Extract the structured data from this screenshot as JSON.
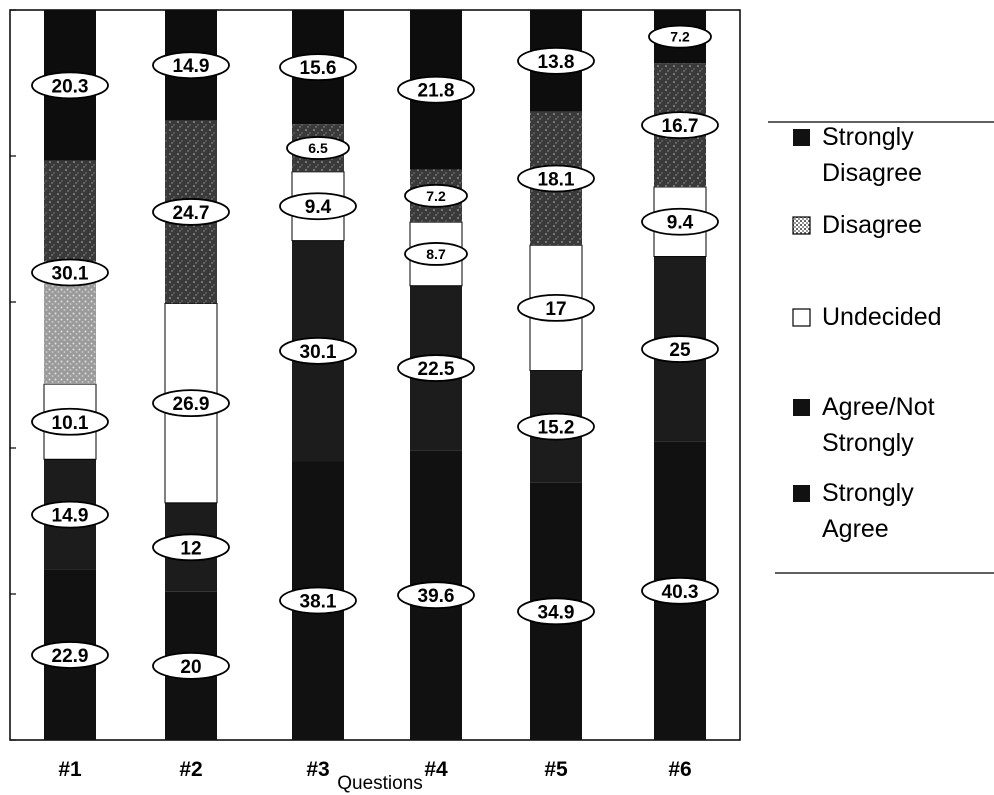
{
  "chart_data": {
    "type": "bar",
    "stacked": true,
    "percent": true,
    "xlabel": "Questions",
    "ylabel": "",
    "title": "",
    "ylim": [
      0,
      100
    ],
    "categories": [
      "#1",
      "#2",
      "#3",
      "#4",
      "#5",
      "#6"
    ],
    "series": [
      {
        "name": "Strongly Agree",
        "color": "#111111",
        "pattern": "solid",
        "values": [
          22.9,
          20,
          38.1,
          39.6,
          34.9,
          40.3
        ],
        "labels": [
          "22.9",
          "20",
          "38.1",
          "39.6",
          "34.9",
          "40.3"
        ]
      },
      {
        "name": "Agree/Not Strongly",
        "color": "#1c1c1c",
        "pattern": "solid",
        "values": [
          14.9,
          12,
          30.1,
          22.5,
          15.2,
          25
        ],
        "labels": [
          "14.9",
          "12",
          "30.1",
          "22.5",
          "15.2",
          "25"
        ]
      },
      {
        "name": "Undecided",
        "color": "#ffffff",
        "pattern": "white",
        "values": [
          10.1,
          26.9,
          9.4,
          8.7,
          17,
          9.4
        ],
        "labels": [
          "10.1",
          "26.9",
          "9.4",
          "8.7",
          "17",
          "9.4"
        ]
      },
      {
        "name": "Disagree",
        "color": "#4a4a4a",
        "pattern": "speckle",
        "values": [
          30.1,
          24.7,
          6.5,
          7.2,
          18.1,
          16.7
        ],
        "labels": [
          "30.1",
          "24.7",
          "6.5",
          "7.2",
          "18.1",
          "16.7"
        ]
      },
      {
        "name": "Strongly Disagree",
        "color": "#0d0d0d",
        "pattern": "solid",
        "values": [
          20.3,
          14.9,
          15.6,
          21.8,
          13.8,
          7.2
        ],
        "labels": [
          "20.3",
          "14.9",
          "15.6",
          "21.8",
          "13.8",
          "7.2"
        ]
      }
    ],
    "legend": {
      "placement": "right",
      "entries": [
        {
          "lines": [
            "Strongly",
            "Disagree"
          ],
          "series": "Strongly Disagree"
        },
        {
          "lines": [
            "Disagree"
          ],
          "series": "Disagree"
        },
        {
          "lines": [
            "Undecided"
          ],
          "series": "Undecided"
        },
        {
          "lines": [
            "Agree/Not",
            "Strongly"
          ],
          "series": "Agree/Not Strongly"
        },
        {
          "lines": [
            "Strongly",
            "Agree"
          ],
          "series": "Strongly Agree"
        }
      ]
    },
    "grid": false
  }
}
